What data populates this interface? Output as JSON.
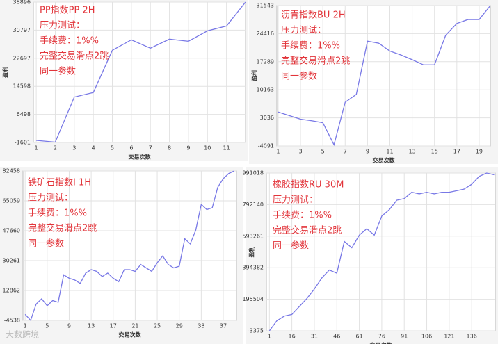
{
  "chart_data": [
    {
      "type": "line",
      "title": "PP指数PP 2H",
      "annotations": [
        "压力测试：",
        "手续费：1%%",
        "完整交易滑点2跳",
        "同一参数"
      ],
      "x_label": "交易次数",
      "y_label": "盈利",
      "x": [
        1,
        2,
        3,
        4,
        5,
        6,
        7,
        8,
        9,
        10,
        11,
        12
      ],
      "values": [
        -1000,
        -1500,
        11500,
        12800,
        25000,
        28000,
        25600,
        28200,
        27600,
        30600,
        32000,
        38896
      ],
      "xlim": [
        0.85,
        12
      ],
      "xticks": [
        1,
        2,
        3,
        4,
        5,
        6,
        7,
        8,
        9,
        10,
        11
      ],
      "ylim": [
        -1601,
        38896
      ],
      "yticks": [
        -1601,
        6498,
        14598,
        22697,
        30797,
        38896
      ],
      "color": "#7878e6",
      "grid": true
    },
    {
      "type": "line",
      "title": "沥青指数BU 2H",
      "annotations": [
        "压力测试：",
        "手续费：1%%",
        "完整交易滑点2跳",
        "同一参数"
      ],
      "x_label": "交易次数",
      "y_label": "盈利",
      "x": [
        1,
        2,
        3,
        4,
        5,
        6,
        7,
        8,
        9,
        10,
        11,
        12,
        13,
        14,
        15,
        16,
        17,
        18,
        19,
        20
      ],
      "values": [
        4500,
        3600,
        2700,
        2300,
        1800,
        -3800,
        7000,
        9000,
        22500,
        22000,
        20000,
        19000,
        17800,
        16500,
        16500,
        24000,
        27000,
        28000,
        28000,
        31543
      ],
      "xlim": [
        0.88,
        20
      ],
      "xticks": [
        1,
        3,
        5,
        7,
        9,
        11,
        13,
        15,
        17,
        19
      ],
      "ylim": [
        -4091,
        31543
      ],
      "yticks": [
        -4091,
        3036,
        10163,
        17289,
        24416,
        31543
      ],
      "color": "#7878e6",
      "grid": true
    },
    {
      "type": "line",
      "title": "铁矿石指数I 1H",
      "annotations": [
        "压力测试：",
        "手续费：1%%",
        "完整交易滑点2跳",
        "同一参数"
      ],
      "x_label": "交易次数",
      "x": [
        1,
        2,
        3,
        4,
        5,
        6,
        7,
        8,
        9,
        10,
        11,
        12,
        13,
        14,
        15,
        16,
        17,
        18,
        19,
        20,
        21,
        22,
        23,
        24,
        25,
        26,
        27,
        28,
        29,
        30,
        31,
        32,
        33,
        34,
        35,
        36,
        37,
        38,
        39
      ],
      "values": [
        -1000,
        -4500,
        5000,
        8000,
        4000,
        7000,
        6000,
        22000,
        20000,
        19000,
        17000,
        23000,
        25000,
        24000,
        21000,
        23000,
        20000,
        18000,
        25000,
        25000,
        24000,
        28000,
        26000,
        24000,
        29000,
        33000,
        28000,
        26000,
        27000,
        43000,
        40000,
        48000,
        63000,
        60000,
        61000,
        73000,
        78000,
        81000,
        82458
      ],
      "xlim": [
        0.6,
        39.4
      ],
      "xticks": [
        1,
        5,
        9,
        13,
        17,
        21,
        25,
        29,
        33,
        37
      ],
      "ylim": [
        -4538,
        82458
      ],
      "yticks": [
        -4538,
        12862,
        30261,
        47660,
        65059,
        82458
      ],
      "color": "#7878e6",
      "grid": true
    },
    {
      "type": "line",
      "title": "橡胶指数RU 30M",
      "annotations": [
        "压力测试：",
        "手续费：1%%",
        "完整交易滑点2跳",
        "同一参数"
      ],
      "x_label": "交易次数",
      "y_label": "盈利",
      "x": [
        1,
        6,
        11,
        16,
        21,
        26,
        31,
        36,
        41,
        46,
        51,
        56,
        61,
        66,
        71,
        76,
        81,
        86,
        91,
        96,
        101,
        106,
        111,
        116,
        121,
        126,
        131,
        136,
        141,
        146,
        151
      ],
      "values": [
        -3375,
        60000,
        90000,
        100000,
        150000,
        200000,
        260000,
        330000,
        380000,
        360000,
        560000,
        520000,
        600000,
        640000,
        600000,
        720000,
        760000,
        820000,
        830000,
        870000,
        860000,
        870000,
        860000,
        870000,
        870000,
        880000,
        890000,
        920000,
        970000,
        991018,
        980000
      ],
      "xlim": [
        -1,
        151.7
      ],
      "xticks": [
        1,
        16,
        31,
        46,
        61,
        76,
        91,
        106,
        121,
        136
      ],
      "ylim": [
        -3375,
        991018
      ],
      "yticks": [
        -3375,
        195504,
        394382,
        593261,
        792140,
        991018
      ],
      "color": "#7878e6",
      "grid": true
    }
  ],
  "watermark": "大数跨境"
}
